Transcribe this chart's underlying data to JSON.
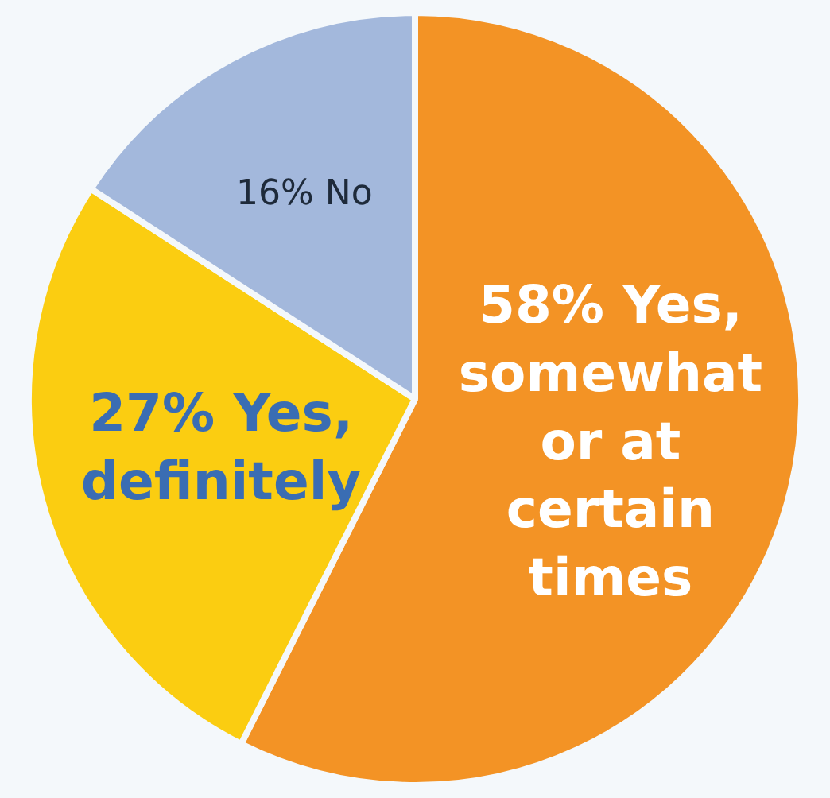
{
  "chart_data": {
    "type": "pie",
    "categories": [
      "Yes, somewhat or at certain times",
      "Yes, definitely",
      "No"
    ],
    "values": [
      58,
      27,
      16
    ],
    "value_labels": [
      "58%",
      "27%",
      "16%"
    ],
    "colors": [
      "#f39325",
      "#fbcd11",
      "#a3b8dc"
    ],
    "legend": false
  }
}
